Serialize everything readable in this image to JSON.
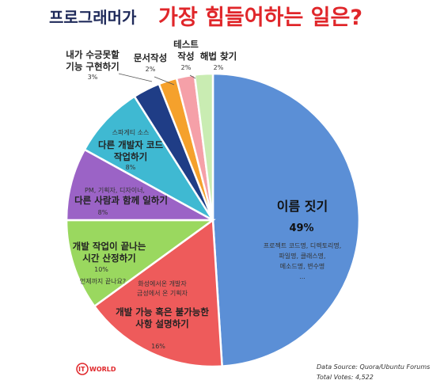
{
  "title": {
    "part1": "프로그래머가",
    "part2": "가장 힘들어하는 일은?"
  },
  "chart_data": {
    "type": "pie",
    "slices": [
      {
        "name": "이름 짓기",
        "value": 49,
        "pct_label": "49%",
        "notes": [
          "프로젝트 코드명, 디렉토리명,",
          "파일명, 클래스명,",
          "메소드명, 변수명",
          "..."
        ],
        "color": "#5b8fd6"
      },
      {
        "name": "개발 가능 혹은 불가능한 사항 설명하기",
        "value": 16,
        "pct_label": "16%",
        "notes": [
          "화성에서온 개발자",
          "금성에서 온 기획자"
        ],
        "color": "#ee5b5b"
      },
      {
        "name": "개발 작업이 끝나는 시간 산정하기",
        "value": 10,
        "pct_label": "10%",
        "notes": [
          "언제까지 끝나요?"
        ],
        "color": "#9ad85f"
      },
      {
        "name": "다른 사람과 함께 일하기",
        "value": 8,
        "pct_label": "8%",
        "notes": [
          "PM, 기획자, 디자이너,"
        ],
        "color": "#9b63c6"
      },
      {
        "name": "다른 개발자 코드 작업하기",
        "value": 8,
        "pct_label": "8%",
        "notes": [
          "스파게티 소스"
        ],
        "color": "#3fb9d2"
      },
      {
        "name": "내가 수긍못할 기능 구현하기",
        "value": 3,
        "pct_label": "3%",
        "notes": [],
        "color": "#1f3d86"
      },
      {
        "name": "문서작성",
        "value": 2,
        "pct_label": "2%",
        "notes": [],
        "color": "#f5a12c"
      },
      {
        "name": "테스트 작성",
        "value": 2,
        "pct_label": "2%",
        "notes": [],
        "color": "#f5a0a8"
      },
      {
        "name": "해법 찾기",
        "value": 2,
        "pct_label": "2%",
        "notes": [],
        "color": "#c9ecb2"
      }
    ]
  },
  "source": {
    "line1": "Data Source: Quora/Ubuntu Forums",
    "line2": "Total Votes: 4,522"
  },
  "logo": {
    "text": "WORLD",
    "mark": "IT"
  }
}
